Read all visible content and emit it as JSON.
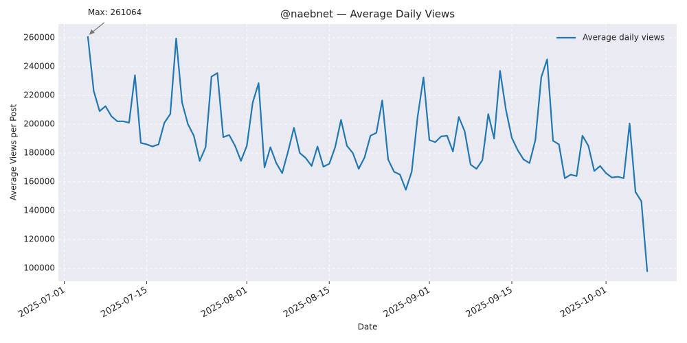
{
  "chart_data": {
    "type": "line",
    "title": "@naebnet — Average Daily Views",
    "xlabel": "Date",
    "ylabel": "Average Views per Post",
    "annotation": {
      "text": "Max: 261064",
      "x": "2025-07-05",
      "y": 261064
    },
    "legend": "upper right",
    "grid": true,
    "x": [
      "2025-07-05",
      "2025-07-06",
      "2025-07-07",
      "2025-07-08",
      "2025-07-09",
      "2025-07-10",
      "2025-07-11",
      "2025-07-12",
      "2025-07-13",
      "2025-07-14",
      "2025-07-15",
      "2025-07-16",
      "2025-07-17",
      "2025-07-18",
      "2025-07-19",
      "2025-07-20",
      "2025-07-21",
      "2025-07-22",
      "2025-07-23",
      "2025-07-24",
      "2025-07-25",
      "2025-07-26",
      "2025-07-27",
      "2025-07-28",
      "2025-07-29",
      "2025-07-30",
      "2025-07-31",
      "2025-08-01",
      "2025-08-02",
      "2025-08-03",
      "2025-08-04",
      "2025-08-05",
      "2025-08-06",
      "2025-08-07",
      "2025-08-08",
      "2025-08-09",
      "2025-08-10",
      "2025-08-11",
      "2025-08-12",
      "2025-08-13",
      "2025-08-14",
      "2025-08-15",
      "2025-08-16",
      "2025-08-17",
      "2025-08-18",
      "2025-08-19",
      "2025-08-20",
      "2025-08-21",
      "2025-08-22",
      "2025-08-23",
      "2025-08-24",
      "2025-08-25",
      "2025-08-26",
      "2025-08-27",
      "2025-08-28",
      "2025-08-29",
      "2025-08-30",
      "2025-08-31",
      "2025-09-01",
      "2025-09-02",
      "2025-09-03",
      "2025-09-04",
      "2025-09-05",
      "2025-09-06",
      "2025-09-07",
      "2025-09-08",
      "2025-09-09",
      "2025-09-10",
      "2025-09-11",
      "2025-09-12",
      "2025-09-13",
      "2025-09-14",
      "2025-09-15",
      "2025-09-16",
      "2025-09-17",
      "2025-09-18",
      "2025-09-19",
      "2025-09-20",
      "2025-09-21",
      "2025-09-22",
      "2025-09-23",
      "2025-09-24",
      "2025-09-25",
      "2025-09-26",
      "2025-09-27",
      "2025-09-28",
      "2025-09-29",
      "2025-09-30",
      "2025-10-01",
      "2025-10-02",
      "2025-10-03",
      "2025-10-04",
      "2025-10-05",
      "2025-10-06",
      "2025-10-07",
      "2025-10-08"
    ],
    "series": [
      {
        "name": "Average daily views",
        "color": "#1f77b4",
        "values": [
          261064,
          223000,
          209000,
          212500,
          205500,
          202000,
          202000,
          201000,
          234000,
          187000,
          186000,
          184500,
          186000,
          201000,
          207000,
          259500,
          215000,
          200000,
          192000,
          174500,
          184000,
          233000,
          235500,
          191000,
          192500,
          185000,
          174500,
          185000,
          215000,
          228500,
          170000,
          184000,
          173000,
          166000,
          181000,
          197500,
          180000,
          176500,
          171000,
          184500,
          170500,
          172500,
          184000,
          203000,
          185000,
          180000,
          169000,
          177000,
          192000,
          194000,
          216500,
          175500,
          167000,
          165000,
          154500,
          167000,
          205000,
          232500,
          189000,
          187500,
          191500,
          192000,
          181000,
          205000,
          195000,
          172000,
          169000,
          175000,
          207000,
          190000,
          237000,
          210000,
          190500,
          182000,
          175500,
          173000,
          189000,
          232500,
          245000,
          188500,
          186000,
          162500,
          165000,
          164000,
          192000,
          185000,
          167500,
          171000,
          166000,
          163000,
          163500,
          162500,
          200500,
          153000,
          146500,
          97500
        ]
      }
    ],
    "xlim": [
      "2025-06-30",
      "2025-10-13"
    ],
    "xticks": [
      "2025-07-01",
      "2025-07-15",
      "2025-08-01",
      "2025-08-15",
      "2025-09-01",
      "2025-09-15",
      "2025-10-01"
    ],
    "ylim": [
      91000,
      269500
    ],
    "yticks": [
      100000,
      120000,
      140000,
      160000,
      180000,
      200000,
      220000,
      240000,
      260000
    ]
  }
}
